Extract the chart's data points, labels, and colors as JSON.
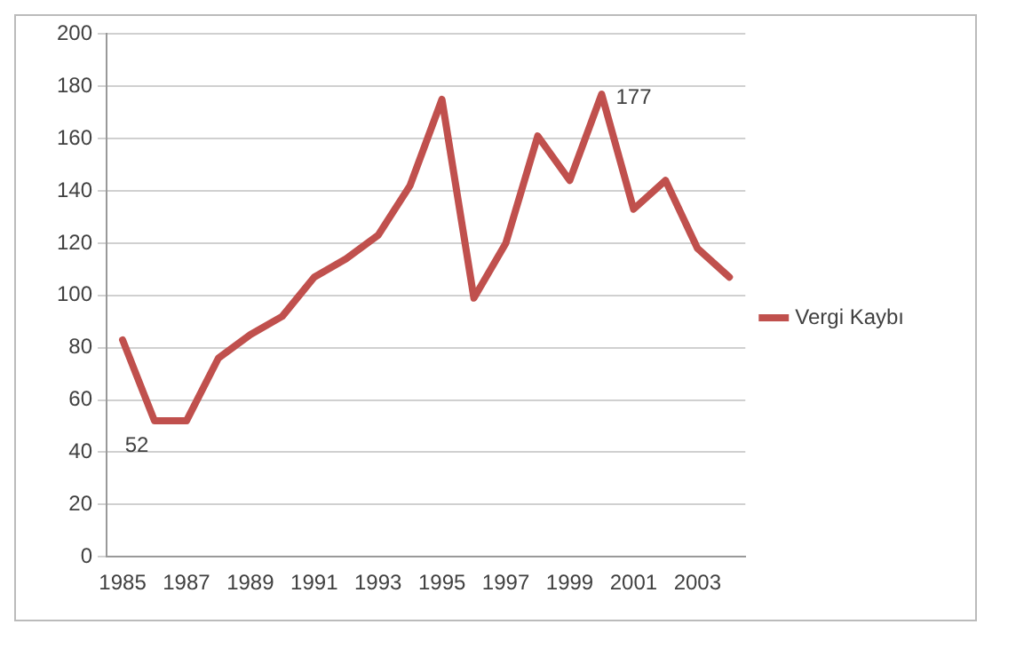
{
  "chart_data": {
    "type": "line",
    "categories": [
      "1985",
      null,
      "1987",
      null,
      "1989",
      null,
      "1991",
      null,
      "1993",
      null,
      "1995",
      null,
      "1997",
      null,
      "1999",
      null,
      "2001",
      null,
      "2003",
      null
    ],
    "series": [
      {
        "name": "Vergi Kaybı",
        "color": "#c0504d",
        "values": [
          83,
          52,
          52,
          76,
          85,
          92,
          107,
          114,
          123,
          142,
          175,
          99,
          120,
          161,
          144,
          177,
          133,
          144,
          118,
          107
        ],
        "value_labels": [
          null,
          "52",
          null,
          null,
          null,
          null,
          null,
          null,
          null,
          null,
          null,
          null,
          null,
          null,
          null,
          "177",
          null,
          null,
          null,
          null
        ]
      }
    ],
    "ylim": [
      0,
      200
    ],
    "yticks": [
      0,
      20,
      40,
      60,
      80,
      100,
      120,
      140,
      160,
      180,
      200
    ],
    "grid": "y",
    "legend": "right",
    "marker": "none",
    "line_style": "solid"
  }
}
